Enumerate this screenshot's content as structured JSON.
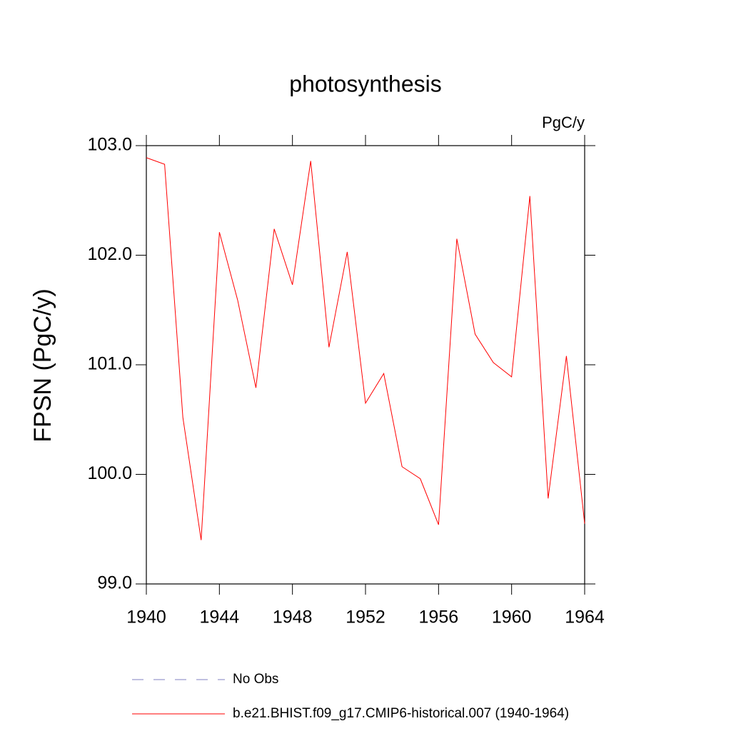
{
  "chart_data": {
    "type": "line",
    "title": "photosynthesis",
    "units_label": "PgC/y",
    "y_label": "FPSN  (PgC/y)",
    "x": [
      1940,
      1941,
      1942,
      1943,
      1944,
      1945,
      1946,
      1947,
      1948,
      1949,
      1950,
      1951,
      1952,
      1953,
      1954,
      1955,
      1956,
      1957,
      1958,
      1959,
      1960,
      1961,
      1962,
      1963,
      1964
    ],
    "series": [
      {
        "name": "b.e21.BHIST.f09_g17.CMIP6-historical.007 (1940-1964)",
        "color": "#ff0000",
        "values": [
          102.89,
          102.83,
          100.52,
          99.4,
          102.21,
          101.59,
          100.79,
          102.24,
          101.73,
          102.86,
          101.16,
          102.03,
          100.65,
          100.92,
          100.07,
          99.96,
          99.54,
          102.15,
          101.28,
          101.02,
          100.89,
          102.54,
          99.78,
          101.08,
          99.55
        ]
      }
    ],
    "legend_entries": [
      {
        "text": "No Obs",
        "color": "#8080c0",
        "dashed": true
      }
    ],
    "xlim": [
      1940,
      1964
    ],
    "xticks": [
      1940,
      1944,
      1948,
      1952,
      1956,
      1960,
      1964
    ],
    "ylim": [
      99,
      103
    ],
    "yticks": [
      {
        "value": 99,
        "label": "99.0"
      },
      {
        "value": 100,
        "label": "100.0"
      },
      {
        "value": 101,
        "label": "101.0"
      },
      {
        "value": 102,
        "label": "102.0"
      },
      {
        "value": 103,
        "label": "103.0"
      }
    ]
  }
}
